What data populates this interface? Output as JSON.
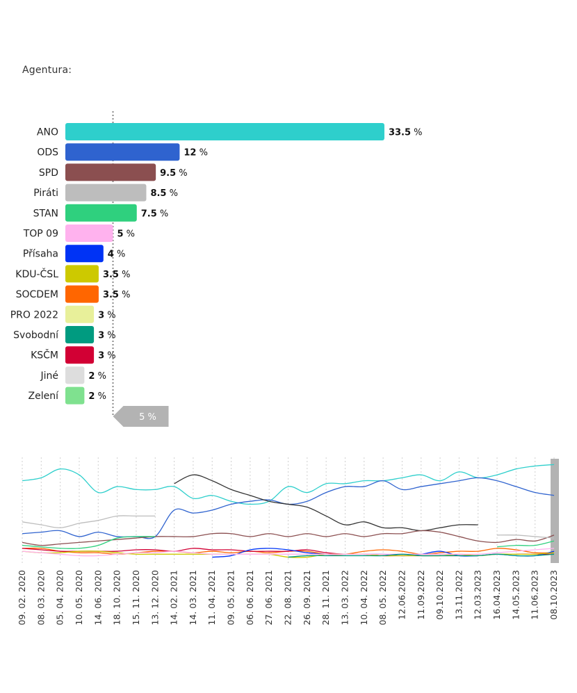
{
  "agency": {
    "label": "Agentura:"
  },
  "chart_data": [
    {
      "type": "bar",
      "orientation": "horizontal",
      "unit": "%",
      "categories": [
        "ANO",
        "ODS",
        "SPD",
        "Piráti",
        "STAN",
        "TOP 09",
        "Přísaha",
        "KDU-ČSL",
        "SOCDEM",
        "PRO 2022",
        "Svobodní",
        "KSČM",
        "Jiné",
        "Zelení"
      ],
      "values": [
        33.5,
        12,
        9.5,
        8.5,
        7.5,
        5,
        4,
        3.5,
        3.5,
        3,
        3,
        3,
        2,
        2
      ],
      "value_labels": [
        "33.5",
        "12",
        "9.5",
        "8.5",
        "7.5",
        "5",
        "4",
        "3.5",
        "3.5",
        "3",
        "3",
        "3",
        "2",
        "2"
      ],
      "colors": [
        "#2ecfcc",
        "#2f63cf",
        "#8b4f50",
        "#bdbdbd",
        "#2fd07e",
        "#ffb2ee",
        "#0033f5",
        "#cdc900",
        "#ff6600",
        "#e8f09a",
        "#009b80",
        "#d20034",
        "#dddddd",
        "#7fe18f"
      ],
      "threshold": {
        "value": 5,
        "label": "5 %"
      }
    },
    {
      "type": "line",
      "x": [
        "09. 02. 2020",
        "08. 03. 2020",
        "05. 04. 2020",
        "10. 05. 2020",
        "14. 06. 2020",
        "18. 10. 2020",
        "15. 11. 2020",
        "13. 12. 2020",
        "14. 02. 2021",
        "14. 03. 2021",
        "11. 04. 2021",
        "09. 05. 2021",
        "06. 06. 2021",
        "27. 06. 2021",
        "22. 08. 2021",
        "26. 09. 2021",
        "28. 11. 2021",
        "13. 03. 2022",
        "10. 04. 2022",
        "08. 05. 2022",
        "12.06.2022",
        "11.09.2022",
        "09.10.2022",
        "13.11.2022",
        "12.03.2023",
        "16.04.2023",
        "14.05.2023",
        "11.06.2023",
        "08.10.2023"
      ],
      "series": [
        {
          "color": "#2ecfcc",
          "values": [
            28,
            29,
            32,
            30,
            24,
            26,
            25,
            25,
            26,
            22,
            23,
            21,
            20,
            21,
            26,
            24,
            27,
            27,
            28,
            28,
            29,
            30,
            28,
            31,
            29,
            30,
            32,
            33,
            33.5
          ]
        },
        {
          "color": "#2f63cf",
          "values": [
            10,
            10.5,
            11,
            9,
            10.5,
            9,
            9,
            9,
            18,
            17,
            18,
            20,
            21,
            21.5,
            20,
            21,
            24,
            26,
            26,
            28,
            25,
            26,
            27,
            28,
            29,
            28,
            26,
            24,
            23
          ]
        },
        {
          "color": "#333333",
          "values": [
            null,
            null,
            null,
            null,
            null,
            null,
            null,
            null,
            27,
            30,
            28,
            25,
            23,
            21,
            20,
            19,
            16,
            13,
            14,
            12,
            12,
            11,
            12,
            13,
            13,
            null,
            null,
            null,
            null
          ]
        },
        {
          "color": "#8b4f50",
          "values": [
            7,
            6,
            6.5,
            7,
            7.5,
            8,
            8.5,
            9,
            9,
            9,
            10,
            10,
            9,
            10,
            9,
            10,
            9,
            10,
            9,
            10,
            10,
            11,
            10.5,
            9,
            7.5,
            7,
            8,
            7.5,
            9.5
          ]
        },
        {
          "color": "#bdbdbd",
          "values": [
            14,
            13,
            12,
            13.5,
            14.5,
            16,
            16,
            16,
            null,
            null,
            null,
            null,
            null,
            null,
            null,
            null,
            null,
            null,
            null,
            null,
            null,
            null,
            null,
            null,
            null,
            9.5,
            9.5,
            9,
            8.5
          ]
        },
        {
          "color": "#2fd07e",
          "values": [
            6,
            5.5,
            5,
            5,
            6,
            8.5,
            9,
            9,
            null,
            null,
            null,
            null,
            null,
            null,
            null,
            null,
            null,
            null,
            null,
            null,
            null,
            null,
            null,
            null,
            null,
            5.5,
            6,
            6,
            7.5
          ]
        },
        {
          "color": "#ff6600",
          "values": [
            5,
            5,
            4,
            3.5,
            3.5,
            3,
            3.5,
            4,
            4,
            3.5,
            4,
            3.5,
            4,
            3.5,
            4,
            4,
            3,
            3,
            4,
            4.5,
            4,
            3,
            3.5,
            4,
            4,
            5,
            4.5,
            3.5,
            3.5
          ]
        },
        {
          "color": "#d20034",
          "values": [
            5,
            4.5,
            4,
            4,
            4,
            4,
            4.5,
            4.5,
            4,
            5,
            4.5,
            4.5,
            4,
            4,
            4,
            4.5,
            3.5,
            3,
            3,
            2.5,
            2.5,
            2.5,
            2.5,
            2.5,
            2.5,
            null,
            3,
            3,
            3
          ]
        },
        {
          "color": "#0033f5",
          "values": [
            null,
            null,
            null,
            null,
            null,
            null,
            null,
            null,
            null,
            null,
            2,
            2.5,
            4.5,
            5,
            4.5,
            3.5,
            3,
            3,
            3,
            3,
            2.5,
            3,
            4,
            2.5,
            2.5,
            3,
            2.5,
            2.5,
            4
          ]
        },
        {
          "color": "#cdc900",
          "values": [
            4,
            3.5,
            3.5,
            4,
            4,
            3.5,
            3,
            3,
            3,
            3,
            3,
            3,
            3,
            3,
            2,
            2,
            3,
            3,
            3,
            2.5,
            2.5,
            2.5,
            2.5,
            3,
            2.5,
            3,
            3,
            3,
            3.5
          ]
        },
        {
          "color": "#ffb2ee",
          "values": [
            4,
            3.5,
            3,
            2.5,
            2.5,
            3,
            3.5,
            3.5,
            4,
            3.5,
            3,
            3,
            3,
            3,
            3,
            3,
            3,
            3,
            3,
            3,
            3,
            3,
            3,
            3,
            3,
            3.5,
            4,
            4.5,
            5
          ]
        },
        {
          "color": "#009b80",
          "values": [
            null,
            null,
            null,
            null,
            null,
            null,
            null,
            null,
            null,
            null,
            null,
            null,
            null,
            null,
            2,
            2.5,
            2.5,
            2.5,
            2.5,
            2.5,
            3,
            2.5,
            2.5,
            2.5,
            2.5,
            3,
            2.5,
            2.5,
            3
          ]
        }
      ],
      "ylim": [
        0,
        35
      ]
    }
  ]
}
